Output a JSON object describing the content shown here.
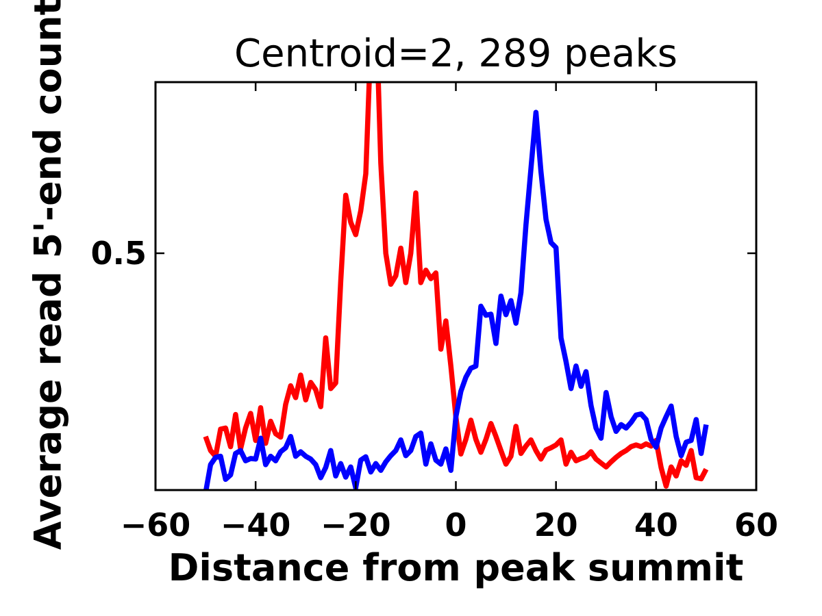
{
  "figure": {
    "title": "Centroid=2, 289 peaks",
    "xlabel": "Distance from peak summit",
    "ylabel": "Average read 5'-end count"
  },
  "chart_data": {
    "type": "line",
    "title": "Centroid=2, 289 peaks",
    "xlabel": "Distance from peak summit",
    "ylabel": "Average read 5'-end count",
    "grid": false,
    "legend": null,
    "xlim": [
      -60,
      60
    ],
    "ylim": [
      0.08,
      0.8035
    ],
    "xticks": {
      "values": [
        -60,
        -40,
        -20,
        0,
        20,
        40,
        60
      ],
      "labels": [
        "−60",
        "−40",
        "−20",
        "0",
        "20",
        "40",
        "60"
      ]
    },
    "yticks": {
      "values": [
        0.5
      ],
      "labels": [
        "0.5"
      ]
    },
    "frame_color": "#000000",
    "x": [
      -50,
      -49,
      -48,
      -47,
      -46,
      -45,
      -44,
      -43,
      -42,
      -41,
      -40,
      -39,
      -38,
      -37,
      -36,
      -35,
      -34,
      -33,
      -32,
      -31,
      -30,
      -29,
      -28,
      -27,
      -26,
      -25,
      -24,
      -23,
      -22,
      -21,
      -20,
      -19,
      -18,
      -17,
      -16,
      -15,
      -14,
      -13,
      -12,
      -11,
      -10,
      -9,
      -8,
      -7,
      -6,
      -5,
      -4,
      -3,
      -2,
      -1,
      0,
      1,
      2,
      3,
      4,
      5,
      6,
      7,
      8,
      9,
      10,
      11,
      12,
      13,
      14,
      15,
      16,
      17,
      18,
      19,
      20,
      21,
      22,
      23,
      24,
      25,
      26,
      27,
      28,
      29,
      30,
      31,
      32,
      33,
      34,
      35,
      36,
      37,
      38,
      39,
      40,
      41,
      42,
      43,
      44,
      45,
      46,
      47,
      48,
      49,
      50
    ],
    "series": [
      {
        "name": "red",
        "color": "#ff0000",
        "values": [
          0.175,
          0.15,
          0.14,
          0.188,
          0.19,
          0.157,
          0.214,
          0.153,
          0.19,
          0.216,
          0.168,
          0.226,
          0.163,
          0.202,
          0.18,
          0.174,
          0.232,
          0.265,
          0.244,
          0.284,
          0.24,
          0.271,
          0.258,
          0.228,
          0.35,
          0.26,
          0.27,
          0.45,
          0.603,
          0.555,
          0.533,
          0.575,
          0.641,
          0.88,
          0.95,
          0.66,
          0.5,
          0.445,
          0.46,
          0.509,
          0.448,
          0.5,
          0.607,
          0.448,
          0.47,
          0.455,
          0.465,
          0.33,
          0.38,
          0.3,
          0.21,
          0.144,
          0.17,
          0.204,
          0.17,
          0.147,
          0.17,
          0.198,
          0.175,
          0.15,
          0.126,
          0.14,
          0.193,
          0.145,
          0.158,
          0.169,
          0.15,
          0.135,
          0.151,
          0.155,
          0.16,
          0.169,
          0.126,
          0.147,
          0.132,
          0.136,
          0.139,
          0.148,
          0.135,
          0.128,
          0.121,
          0.13,
          0.138,
          0.145,
          0.15,
          0.157,
          0.16,
          0.157,
          0.162,
          0.158,
          0.168,
          0.12,
          0.087,
          0.121,
          0.105,
          0.132,
          0.124,
          0.15,
          0.102,
          0.1,
          0.117
        ]
      },
      {
        "name": "blue",
        "color": "#0000ff",
        "values": [
          0.075,
          0.125,
          0.138,
          0.14,
          0.099,
          0.107,
          0.145,
          0.15,
          0.132,
          0.136,
          0.135,
          0.172,
          0.125,
          0.14,
          0.132,
          0.148,
          0.155,
          0.175,
          0.14,
          0.148,
          0.14,
          0.135,
          0.125,
          0.102,
          0.12,
          0.15,
          0.105,
          0.127,
          0.103,
          0.121,
          0.084,
          0.133,
          0.139,
          0.112,
          0.127,
          0.115,
          0.13,
          0.141,
          0.15,
          0.169,
          0.141,
          0.15,
          0.175,
          0.181,
          0.126,
          0.162,
          0.133,
          0.126,
          0.153,
          0.115,
          0.21,
          0.255,
          0.28,
          0.296,
          0.3,
          0.406,
          0.39,
          0.392,
          0.34,
          0.424,
          0.391,
          0.416,
          0.376,
          0.43,
          0.55,
          0.65,
          0.75,
          0.645,
          0.56,
          0.519,
          0.51,
          0.35,
          0.308,
          0.26,
          0.3,
          0.264,
          0.29,
          0.23,
          0.19,
          0.172,
          0.253,
          0.21,
          0.184,
          0.196,
          0.19,
          0.2,
          0.213,
          0.215,
          0.205,
          0.17,
          0.156,
          0.19,
          0.21,
          0.229,
          0.175,
          0.141,
          0.165,
          0.168,
          0.205,
          0.145,
          0.196
        ]
      }
    ]
  }
}
